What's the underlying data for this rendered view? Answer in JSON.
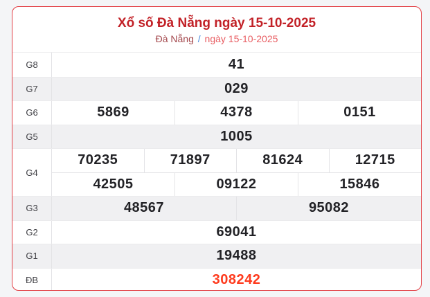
{
  "header": {
    "title": "Xổ số Đà Nẵng ngày 15-10-2025",
    "breadcrumb": {
      "region": "Đà Nẵng",
      "separator": "/",
      "date": "ngày 15-10-2025"
    }
  },
  "colors": {
    "title_red": "#c22127",
    "card_border_red": "#e23b41",
    "special_prize_red": "#fe3b1e",
    "breadcrumb_separator_blue": "#4a89dc",
    "shaded_row_gray": "#f0f0f2",
    "page_background": "#f4f5f7"
  },
  "table": {
    "rows": [
      {
        "label": "G8",
        "cells": [
          [
            "41"
          ]
        ]
      },
      {
        "label": "G7",
        "cells": [
          [
            "029"
          ]
        ]
      },
      {
        "label": "G6",
        "cells": [
          [
            "5869",
            "4378",
            "0151"
          ]
        ]
      },
      {
        "label": "G5",
        "cells": [
          [
            "1005"
          ]
        ]
      },
      {
        "label": "G4",
        "cells": [
          [
            "70235",
            "71897",
            "81624",
            "12715"
          ],
          [
            "42505",
            "09122",
            "15846"
          ]
        ]
      },
      {
        "label": "G3",
        "cells": [
          [
            "48567",
            "95082"
          ]
        ]
      },
      {
        "label": "G2",
        "cells": [
          [
            "69041"
          ]
        ]
      },
      {
        "label": "G1",
        "cells": [
          [
            "19488"
          ]
        ]
      },
      {
        "label": "ĐB",
        "cells": [
          [
            "308242"
          ]
        ]
      }
    ]
  }
}
